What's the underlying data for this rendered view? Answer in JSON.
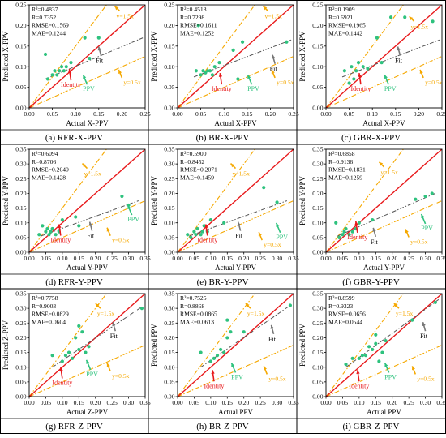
{
  "colors": {
    "identity": "#e8191b",
    "ref_lines": "#f5a800",
    "fit": "#555555",
    "ppv_points": "#2ec27e",
    "annot_fit": "#777777"
  },
  "annot_labels": {
    "fit": "Fit",
    "identity": "Identity",
    "ppv": "PPV",
    "y15": "y=1.5x",
    "y05": "y=0.5x"
  },
  "chart_data": [
    {
      "type": "scatter",
      "caption": "(a) RFR-X-PPV",
      "xlabel": "Actual X-PPV",
      "ylabel": "Predicted X-PPV",
      "xlim": [
        0,
        0.25
      ],
      "ylim": [
        0,
        0.25
      ],
      "xticks": [
        "0.00",
        "0.05",
        "0.10",
        "0.15",
        "0.20",
        "0.25"
      ],
      "yticks": [
        "0.00",
        "0.05",
        "0.10",
        "0.15",
        "0.20",
        "0.25"
      ],
      "xtick_values": [
        0,
        0.05,
        0.1,
        0.15,
        0.2,
        0.25
      ],
      "ytick_values": [
        0,
        0.05,
        0.1,
        0.15,
        0.2,
        0.25
      ],
      "stats": [
        "R²=0.4837",
        "R=0.7352",
        "RMSE=0.1569",
        "MAE=0.1244"
      ],
      "fit": {
        "x": [
          0.035,
          0.245
        ],
        "y": [
          0.07,
          0.17
        ]
      },
      "points": [
        [
          0.035,
          0.13
        ],
        [
          0.04,
          0.07
        ],
        [
          0.05,
          0.08
        ],
        [
          0.055,
          0.09
        ],
        [
          0.06,
          0.08
        ],
        [
          0.065,
          0.09
        ],
        [
          0.07,
          0.1
        ],
        [
          0.075,
          0.09
        ],
        [
          0.08,
          0.1
        ],
        [
          0.09,
          0.11
        ],
        [
          0.12,
          0.17
        ],
        [
          0.13,
          0.12
        ],
        [
          0.15,
          0.17
        ]
      ],
      "annotations": {
        "fit": [
          0.155,
          0.125
        ],
        "identity": [
          0.09,
          0.055
        ],
        "ppv": [
          0.125,
          0.045
        ],
        "y15": [
          0.195,
          0.235
        ],
        "y05": [
          0.2,
          0.065
        ]
      }
    },
    {
      "type": "scatter",
      "caption": "(b) BR-X-PPV",
      "xlabel": "Actual X-PPV",
      "ylabel": "Predicted X-PPV",
      "xlim": [
        0,
        0.25
      ],
      "ylim": [
        0,
        0.25
      ],
      "xticks": [
        "0.00",
        "0.05",
        "0.10",
        "0.15",
        "0.20",
        "0.25"
      ],
      "yticks": [
        "0.00",
        "0.05",
        "0.10",
        "0.15",
        "0.20",
        "0.25"
      ],
      "xtick_values": [
        0,
        0.05,
        0.1,
        0.15,
        0.2,
        0.25
      ],
      "ytick_values": [
        0,
        0.05,
        0.1,
        0.15,
        0.2,
        0.25
      ],
      "stats": [
        "R²=0.4518",
        "R=0.7298",
        "RMSE=0.1611",
        "MAE=0.1252"
      ],
      "fit": {
        "x": [
          0.035,
          0.245
        ],
        "y": [
          0.075,
          0.165
        ]
      },
      "points": [
        [
          0.04,
          0.09
        ],
        [
          0.05,
          0.08
        ],
        [
          0.055,
          0.09
        ],
        [
          0.06,
          0.085
        ],
        [
          0.065,
          0.09
        ],
        [
          0.07,
          0.09
        ],
        [
          0.075,
          0.08
        ],
        [
          0.08,
          0.1
        ],
        [
          0.09,
          0.11
        ],
        [
          0.12,
          0.14
        ],
        [
          0.13,
          0.07
        ],
        [
          0.14,
          0.16
        ],
        [
          0.235,
          0.16
        ],
        [
          0.045,
          0.2
        ]
      ],
      "annotations": {
        "fit": [
          0.21,
          0.105
        ],
        "identity": [
          0.095,
          0.045
        ],
        "ppv": [
          0.16,
          0.045
        ],
        "y15": [
          0.195,
          0.235
        ],
        "y05": [
          0.21,
          0.065
        ]
      }
    },
    {
      "type": "scatter",
      "caption": "(c) GBR-X-PPV",
      "xlabel": "Actual X-PPV",
      "ylabel": "Predicted X-PPV",
      "xlim": [
        0,
        0.25
      ],
      "ylim": [
        0,
        0.25
      ],
      "xticks": [
        "0.00",
        "0.05",
        "0.10",
        "0.15",
        "0.20",
        "0.25"
      ],
      "yticks": [
        "0.00",
        "0.05",
        "0.10",
        "0.15",
        "0.20",
        "0.25"
      ],
      "xtick_values": [
        0,
        0.05,
        0.1,
        0.15,
        0.2,
        0.25
      ],
      "ytick_values": [
        0,
        0.05,
        0.1,
        0.15,
        0.2,
        0.25
      ],
      "stats": [
        "R²=0.1909",
        "R=0.6921",
        "RMSE=0.1965",
        "MAE=0.1442"
      ],
      "fit": {
        "x": [
          0.035,
          0.245
        ],
        "y": [
          0.075,
          0.165
        ]
      },
      "points": [
        [
          0.04,
          0.09
        ],
        [
          0.05,
          0.06
        ],
        [
          0.055,
          0.1
        ],
        [
          0.06,
          0.07
        ],
        [
          0.065,
          0.09
        ],
        [
          0.07,
          0.11
        ],
        [
          0.08,
          0.1
        ],
        [
          0.09,
          0.095
        ],
        [
          0.11,
          0.17
        ],
        [
          0.12,
          0.11
        ],
        [
          0.14,
          0.22
        ],
        [
          0.17,
          0.22
        ],
        [
          0.23,
          0.21
        ]
      ],
      "annotations": {
        "fit": [
          0.16,
          0.125
        ],
        "identity": [
          0.075,
          0.045
        ],
        "ppv": [
          0.135,
          0.045
        ],
        "y15": [
          0.19,
          0.21
        ],
        "y05": [
          0.21,
          0.065
        ]
      }
    },
    {
      "type": "scatter",
      "caption": "(d) RFR-Y-PPV",
      "xlabel": "Actual Y-PPV",
      "ylabel": "Predicted Y-PPV",
      "xlim": [
        0,
        0.35
      ],
      "ylim": [
        0,
        0.35
      ],
      "xticks": [
        "0.00",
        "0.05",
        "0.10",
        "0.15",
        "0.20",
        "0.25",
        "0.30",
        "0.35"
      ],
      "yticks": [
        "0.00",
        "0.05",
        "0.10",
        "0.15",
        "0.20",
        "0.25",
        "0.30",
        "0.35"
      ],
      "xtick_values": [
        0,
        0.05,
        0.1,
        0.15,
        0.2,
        0.25,
        0.3,
        0.35
      ],
      "ytick_values": [
        0,
        0.05,
        0.1,
        0.15,
        0.2,
        0.25,
        0.3,
        0.35
      ],
      "stats": [
        "R²=0.6094",
        "R=0.8706",
        "RMSE=0.2040",
        "MAE=0.1428"
      ],
      "fit": {
        "x": [
          0.035,
          0.33
        ],
        "y": [
          0.055,
          0.175
        ]
      },
      "points": [
        [
          0.03,
          0.06
        ],
        [
          0.04,
          0.09
        ],
        [
          0.05,
          0.07
        ],
        [
          0.055,
          0.08
        ],
        [
          0.06,
          0.06
        ],
        [
          0.065,
          0.07
        ],
        [
          0.07,
          0.08
        ],
        [
          0.08,
          0.06
        ],
        [
          0.09,
          0.07
        ],
        [
          0.1,
          0.11
        ],
        [
          0.14,
          0.12
        ],
        [
          0.15,
          0.09
        ],
        [
          0.28,
          0.19
        ],
        [
          0.3,
          0.16
        ]
      ],
      "annotations": {
        "fit": [
          0.19,
          0.07
        ],
        "identity": [
          0.095,
          0.04
        ],
        "ppv": [
          0.31,
          0.11
        ],
        "y15": [
          0.175,
          0.285
        ],
        "y05": [
          0.245,
          0.045
        ]
      }
    },
    {
      "type": "scatter",
      "caption": "(e) BR-Y-PPV",
      "xlabel": "Actual Y-PPV",
      "ylabel": "Predicted Y-PPV",
      "xlim": [
        0,
        0.35
      ],
      "ylim": [
        0,
        0.35
      ],
      "xticks": [
        "0.00",
        "0.05",
        "0.10",
        "0.15",
        "0.20",
        "0.25",
        "0.30",
        "0.35"
      ],
      "yticks": [
        "0.00",
        "0.05",
        "0.10",
        "0.15",
        "0.20",
        "0.25",
        "0.30",
        "0.35"
      ],
      "xtick_values": [
        0,
        0.05,
        0.1,
        0.15,
        0.2,
        0.25,
        0.3,
        0.35
      ],
      "ytick_values": [
        0,
        0.05,
        0.1,
        0.15,
        0.2,
        0.25,
        0.3,
        0.35
      ],
      "stats": [
        "R²=0.5900",
        "R=0.8452",
        "RMSE=0.2071",
        "MAE=0.1459"
      ],
      "fit": {
        "x": [
          0.035,
          0.33
        ],
        "y": [
          0.055,
          0.175
        ]
      },
      "points": [
        [
          0.03,
          0.06
        ],
        [
          0.04,
          0.05
        ],
        [
          0.05,
          0.07
        ],
        [
          0.055,
          0.06
        ],
        [
          0.06,
          0.08
        ],
        [
          0.07,
          0.06
        ],
        [
          0.075,
          0.07
        ],
        [
          0.08,
          0.09
        ],
        [
          0.09,
          0.07
        ],
        [
          0.1,
          0.11
        ],
        [
          0.14,
          0.1
        ],
        [
          0.26,
          0.22
        ],
        [
          0.3,
          0.17
        ]
      ],
      "annotations": {
        "fit": [
          0.19,
          0.07
        ],
        "identity": [
          0.09,
          0.04
        ],
        "ppv": [
          0.31,
          0.05
        ],
        "y15": [
          0.175,
          0.285
        ],
        "y05": [
          0.255,
          0.03
        ]
      }
    },
    {
      "type": "scatter",
      "caption": "(f) GBR-Y-PPV",
      "xlabel": "Actual Y-PPV",
      "ylabel": "Predicted Y-PPV",
      "xlim": [
        0,
        0.35
      ],
      "ylim": [
        0,
        0.35
      ],
      "xticks": [
        "0.00",
        "0.05",
        "0.10",
        "0.15",
        "0.20",
        "0.25",
        "0.30",
        "0.35"
      ],
      "yticks": [
        "0.00",
        "0.05",
        "0.10",
        "0.15",
        "0.20",
        "0.25",
        "0.30",
        "0.35"
      ],
      "xtick_values": [
        0,
        0.05,
        0.1,
        0.15,
        0.2,
        0.25,
        0.3,
        0.35
      ],
      "ytick_values": [
        0,
        0.05,
        0.1,
        0.15,
        0.2,
        0.25,
        0.3,
        0.35
      ],
      "stats": [
        "R²=0.6858",
        "R=0.9136",
        "RMSE=0.1831",
        "MAE=0.1259"
      ],
      "fit": {
        "x": [
          0.035,
          0.33
        ],
        "y": [
          0.055,
          0.2
        ]
      },
      "points": [
        [
          0.03,
          0.1
        ],
        [
          0.04,
          0.05
        ],
        [
          0.05,
          0.06
        ],
        [
          0.055,
          0.07
        ],
        [
          0.06,
          0.08
        ],
        [
          0.07,
          0.06
        ],
        [
          0.08,
          0.07
        ],
        [
          0.09,
          0.08
        ],
        [
          0.1,
          0.1
        ],
        [
          0.14,
          0.11
        ],
        [
          0.27,
          0.18
        ],
        [
          0.3,
          0.19
        ],
        [
          0.32,
          0.2
        ]
      ],
      "annotations": {
        "fit": [
          0.15,
          0.05
        ],
        "identity": [
          0.095,
          0.05
        ],
        "ppv": [
          0.3,
          0.08
        ],
        "y15": [
          0.175,
          0.29
        ],
        "y05": [
          0.25,
          0.04
        ]
      }
    },
    {
      "type": "scatter",
      "caption": "(g) RFR-Z-PPV",
      "xlabel": "Actual Z-PPV",
      "ylabel": "Predicted Z-PPV",
      "xlim": [
        0,
        0.35
      ],
      "ylim": [
        0,
        0.35
      ],
      "xticks": [
        "0.00",
        "0.05",
        "0.10",
        "0.15",
        "0.20",
        "0.25",
        "0.30",
        "0.35"
      ],
      "yticks": [
        "0.00",
        "0.05",
        "0.10",
        "0.15",
        "0.20",
        "0.25",
        "0.30",
        "0.35"
      ],
      "xtick_values": [
        0,
        0.05,
        0.1,
        0.15,
        0.2,
        0.25,
        0.3,
        0.35
      ],
      "ytick_values": [
        0,
        0.05,
        0.1,
        0.15,
        0.2,
        0.25,
        0.3,
        0.35
      ],
      "stats": [
        "R²=0.7758",
        "R=0.9003",
        "RMSE=0.0829",
        "MAE=0.0604"
      ],
      "fit": {
        "x": [
          0.07,
          0.34
        ],
        "y": [
          0.1,
          0.305
        ]
      },
      "points": [
        [
          0.07,
          0.14
        ],
        [
          0.1,
          0.12
        ],
        [
          0.11,
          0.14
        ],
        [
          0.12,
          0.15
        ],
        [
          0.13,
          0.13
        ],
        [
          0.14,
          0.2
        ],
        [
          0.15,
          0.16
        ],
        [
          0.15,
          0.24
        ],
        [
          0.16,
          0.22
        ],
        [
          0.17,
          0.15
        ],
        [
          0.18,
          0.17
        ],
        [
          0.34,
          0.3
        ]
      ],
      "annotations": {
        "fit": [
          0.26,
          0.22
        ],
        "identity": [
          0.1,
          0.045
        ],
        "ppv": [
          0.185,
          0.075
        ],
        "y15": [
          0.215,
          0.3
        ],
        "y05": [
          0.245,
          0.075
        ]
      }
    },
    {
      "type": "scatter",
      "caption": "(h) BR-Z-PPV",
      "xlabel": "Actual PPV",
      "ylabel": "Predicted PPV",
      "xlim": [
        0,
        0.35
      ],
      "ylim": [
        0,
        0.35
      ],
      "xticks": [
        "0.00",
        "0.05",
        "0.10",
        "0.15",
        "0.20",
        "0.25",
        "0.30",
        "0.35"
      ],
      "yticks": [
        "0.00",
        "0.05",
        "0.10",
        "0.15",
        "0.20",
        "0.25",
        "0.30",
        "0.35"
      ],
      "xtick_values": [
        0,
        0.05,
        0.1,
        0.15,
        0.2,
        0.25,
        0.3,
        0.35
      ],
      "ytick_values": [
        0,
        0.05,
        0.1,
        0.15,
        0.2,
        0.25,
        0.3,
        0.35
      ],
      "stats": [
        "R²=0.7525",
        "R=0.8868",
        "RMSE=0.0865",
        "MAE=0.0613"
      ],
      "fit": {
        "x": [
          0.07,
          0.34
        ],
        "y": [
          0.1,
          0.31
        ]
      },
      "points": [
        [
          0.07,
          0.15
        ],
        [
          0.1,
          0.12
        ],
        [
          0.11,
          0.13
        ],
        [
          0.12,
          0.14
        ],
        [
          0.13,
          0.16
        ],
        [
          0.14,
          0.15
        ],
        [
          0.15,
          0.2
        ],
        [
          0.15,
          0.26
        ],
        [
          0.16,
          0.22
        ],
        [
          0.2,
          0.22
        ],
        [
          0.34,
          0.31
        ]
      ],
      "annotations": {
        "fit": [
          0.29,
          0.21
        ],
        "identity": [
          0.11,
          0.035
        ],
        "ppv": [
          0.175,
          0.065
        ],
        "y15": [
          0.22,
          0.3
        ],
        "y05": [
          0.27,
          0.065
        ]
      }
    },
    {
      "type": "scatter",
      "caption": "(i) GBR-Z-PPV",
      "xlabel": "Actual PPV",
      "ylabel": "Predicted PPV",
      "xlim": [
        0,
        0.35
      ],
      "ylim": [
        0,
        0.35
      ],
      "xticks": [
        "0.00",
        "0.05",
        "0.10",
        "0.15",
        "0.20",
        "0.25",
        "0.30",
        "0.35"
      ],
      "yticks": [
        "0.00",
        "0.05",
        "0.10",
        "0.15",
        "0.20",
        "0.25",
        "0.30",
        "0.35"
      ],
      "xtick_values": [
        0,
        0.05,
        0.1,
        0.15,
        0.2,
        0.25,
        0.3,
        0.35
      ],
      "ytick_values": [
        0,
        0.05,
        0.1,
        0.15,
        0.2,
        0.25,
        0.3,
        0.35
      ],
      "stats": [
        "R²=0.8599",
        "R=0.9323",
        "RMSE=0.0656",
        "MAE=0.0544"
      ],
      "fit": {
        "x": [
          0.06,
          0.34
        ],
        "y": [
          0.1,
          0.33
        ]
      },
      "points": [
        [
          0.06,
          0.11
        ],
        [
          0.08,
          0.13
        ],
        [
          0.1,
          0.13
        ],
        [
          0.11,
          0.14
        ],
        [
          0.12,
          0.14
        ],
        [
          0.13,
          0.17
        ],
        [
          0.14,
          0.16
        ],
        [
          0.15,
          0.18
        ],
        [
          0.15,
          0.21
        ],
        [
          0.16,
          0.12
        ],
        [
          0.17,
          0.15
        ],
        [
          0.18,
          0.19
        ],
        [
          0.26,
          0.26
        ],
        [
          0.33,
          0.32
        ]
      ],
      "annotations": {
        "fit": [
          0.3,
          0.22
        ],
        "identity": [
          0.1,
          0.035
        ],
        "ppv": [
          0.19,
          0.065
        ],
        "y15": [
          0.22,
          0.3
        ],
        "y05": [
          0.27,
          0.065
        ]
      }
    }
  ]
}
